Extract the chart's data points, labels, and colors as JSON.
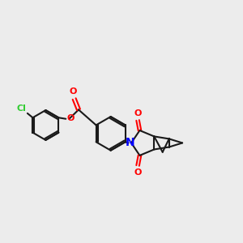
{
  "bg_color": "#ececec",
  "bond_color": "#1a1a1a",
  "cl_color": "#33cc33",
  "o_color": "#ff0000",
  "n_color": "#0000ff",
  "lw": 1.5,
  "fs": 8,
  "xlim": [
    0,
    10
  ],
  "ylim": [
    1.5,
    8.5
  ]
}
